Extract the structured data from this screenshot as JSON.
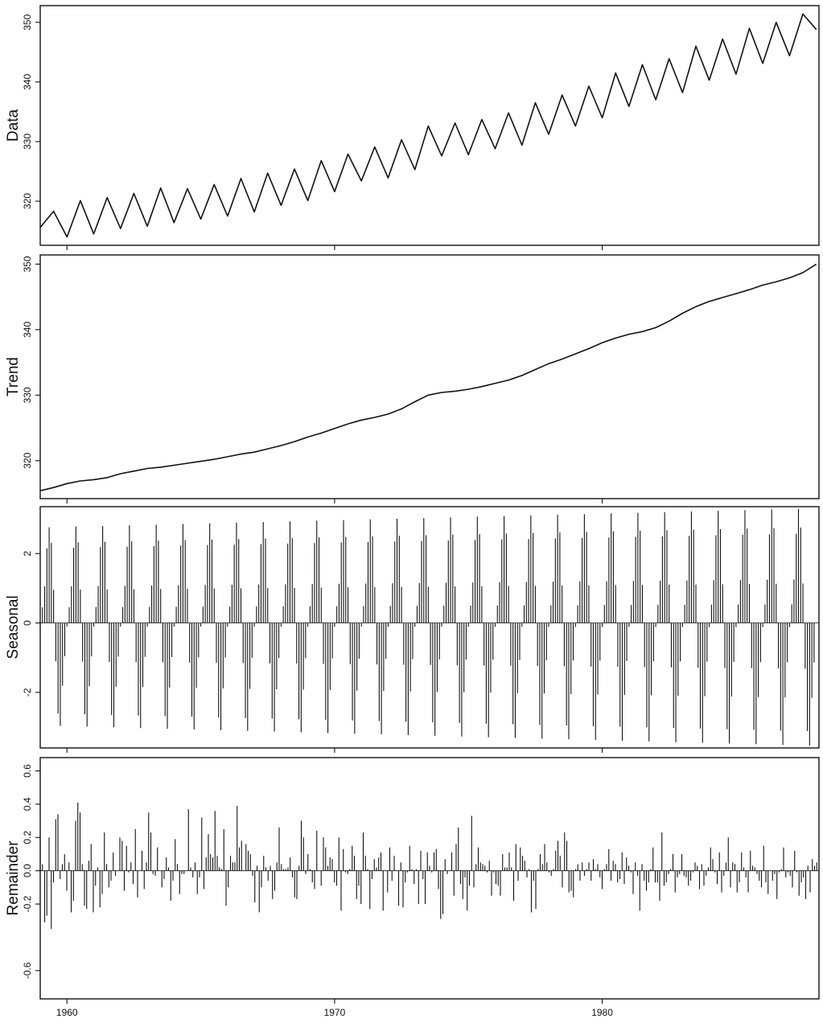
{
  "chart_data": {
    "type": "line",
    "x_range": [
      1959,
      1988.1
    ],
    "x_ticks": [
      {
        "value": 1960,
        "label": "1960"
      },
      {
        "value": 1970,
        "label": "1970"
      },
      {
        "value": 1980,
        "label": "1980"
      }
    ],
    "panels": [
      {
        "id": "data",
        "type": "line",
        "ylabel": "Data",
        "ylim": [
          312.6,
          352.8
        ],
        "yticks": [
          {
            "value": 320,
            "label": "320"
          },
          {
            "value": 330,
            "label": "330"
          },
          {
            "value": 340,
            "label": "340"
          },
          {
            "value": 350,
            "label": "350"
          }
        ],
        "x": [
          1959.0,
          1959.5,
          1960.0,
          1960.5,
          1961.0,
          1961.5,
          1962.0,
          1962.5,
          1963.0,
          1963.5,
          1964.0,
          1964.5,
          1965.0,
          1965.5,
          1966.0,
          1966.5,
          1967.0,
          1967.5,
          1968.0,
          1968.5,
          1969.0,
          1969.5,
          1970.0,
          1970.5,
          1971.0,
          1971.5,
          1972.0,
          1972.5,
          1973.0,
          1973.5,
          1974.0,
          1974.5,
          1975.0,
          1975.5,
          1976.0,
          1976.5,
          1977.0,
          1977.5,
          1978.0,
          1978.5,
          1979.0,
          1979.5,
          1980.0,
          1980.5,
          1981.0,
          1981.5,
          1982.0,
          1982.5,
          1983.0,
          1983.5,
          1984.0,
          1984.5,
          1985.0,
          1985.5,
          1986.0,
          1986.5,
          1987.0,
          1987.5,
          1988.0
        ],
        "y": [
          315.6,
          318.3,
          314.0,
          320.1,
          314.5,
          320.6,
          315.4,
          321.3,
          315.8,
          322.2,
          316.4,
          322.1,
          317.0,
          322.8,
          317.5,
          323.8,
          318.2,
          324.7,
          319.3,
          325.4,
          320.1,
          326.8,
          321.6,
          327.9,
          323.4,
          329.1,
          323.9,
          330.3,
          325.3,
          332.6,
          327.6,
          333.1,
          327.8,
          333.7,
          328.8,
          334.8,
          329.4,
          336.5,
          331.2,
          337.8,
          332.6,
          339.3,
          334.0,
          341.5,
          335.9,
          342.9,
          337.0,
          343.9,
          338.2,
          346.0,
          340.3,
          347.2,
          341.3,
          349.0,
          343.1,
          350.0,
          344.4,
          351.4,
          348.8
        ]
      },
      {
        "id": "trend",
        "type": "line",
        "ylabel": "Trend",
        "ylim": [
          314.2,
          351.4
        ],
        "yticks": [
          {
            "value": 320,
            "label": "320"
          },
          {
            "value": 330,
            "label": "330"
          },
          {
            "value": 340,
            "label": "340"
          },
          {
            "value": 350,
            "label": "350"
          }
        ],
        "x": [
          1959.0,
          1959.5,
          1960.0,
          1960.5,
          1961.0,
          1961.5,
          1962.0,
          1962.5,
          1963.0,
          1963.5,
          1964.0,
          1964.5,
          1965.0,
          1965.5,
          1966.0,
          1966.5,
          1967.0,
          1967.5,
          1968.0,
          1968.5,
          1969.0,
          1969.5,
          1970.0,
          1970.5,
          1971.0,
          1971.5,
          1972.0,
          1972.5,
          1973.0,
          1973.5,
          1974.0,
          1974.5,
          1975.0,
          1975.5,
          1976.0,
          1976.5,
          1977.0,
          1977.5,
          1978.0,
          1978.5,
          1979.0,
          1979.5,
          1980.0,
          1980.5,
          1981.0,
          1981.5,
          1982.0,
          1982.5,
          1983.0,
          1983.5,
          1984.0,
          1984.5,
          1985.0,
          1985.5,
          1986.0,
          1986.5,
          1987.0,
          1987.5,
          1988.0
        ],
        "y": [
          315.4,
          315.9,
          316.5,
          316.9,
          317.1,
          317.4,
          318.0,
          318.4,
          318.8,
          319.0,
          319.3,
          319.6,
          319.9,
          320.2,
          320.6,
          321.0,
          321.3,
          321.8,
          322.3,
          322.9,
          323.6,
          324.2,
          324.9,
          325.6,
          326.2,
          326.6,
          327.1,
          327.9,
          329.0,
          330.0,
          330.4,
          330.6,
          330.9,
          331.3,
          331.8,
          332.3,
          333.0,
          333.9,
          334.8,
          335.5,
          336.3,
          337.1,
          338.0,
          338.7,
          339.3,
          339.7,
          340.3,
          341.3,
          342.5,
          343.5,
          344.3,
          344.9,
          345.5,
          346.1,
          346.8,
          347.3,
          347.9,
          348.7,
          350.0
        ]
      },
      {
        "id": "seasonal",
        "type": "bar",
        "ylabel": "Seasonal",
        "ylim": [
          -3.6,
          3.35
        ],
        "yticks": [
          {
            "value": -2,
            "label": "-2"
          },
          {
            "value": 0,
            "label": "0"
          },
          {
            "value": 2,
            "label": "2"
          }
        ],
        "x_start": 1959.0,
        "months_per_year": 12,
        "n_years": 29,
        "monthly_pattern": [
          -0.1,
          0.45,
          1.05,
          2.15,
          2.75,
          2.3,
          0.95,
          -1.1,
          -2.6,
          -2.95,
          -1.8,
          -0.95
        ],
        "amplitude_growth": [
          1.0,
          1.2
        ]
      },
      {
        "id": "remainder",
        "type": "bar",
        "ylabel": "Remainder",
        "ylim": [
          -0.77,
          0.68
        ],
        "yticks": [
          {
            "value": -0.6,
            "label": "-0.6"
          },
          {
            "value": -0.2,
            "label": "-0.2"
          },
          {
            "value": 0.0,
            "label": "0.0"
          },
          {
            "value": 0.2,
            "label": "0.2"
          },
          {
            "value": 0.4,
            "label": "0.4"
          },
          {
            "value": 0.6,
            "label": "0.6"
          }
        ],
        "x_start": 1959.0,
        "values": [
          0.22,
          0.04,
          -0.31,
          -0.27,
          0.2,
          -0.35,
          -0.07,
          0.31,
          0.34,
          -0.05,
          0.04,
          0.1,
          -0.12,
          0.05,
          -0.25,
          -0.18,
          0.3,
          0.41,
          0.35,
          0.04,
          -0.21,
          -0.23,
          0.06,
          0.16,
          -0.25,
          -0.09,
          0.02,
          -0.22,
          -0.14,
          0.23,
          0.04,
          -0.1,
          -0.06,
          0.11,
          -0.03,
          0.0,
          0.2,
          0.18,
          -0.12,
          0.15,
          -0.01,
          0.05,
          -0.08,
          0.25,
          -0.16,
          0.0,
          0.12,
          -0.11,
          0.05,
          0.35,
          0.23,
          -0.02,
          -0.03,
          0.14,
          0.0,
          -0.1,
          -0.05,
          0.08,
          0.02,
          -0.18,
          -0.06,
          0.19,
          0.04,
          -0.14,
          -0.02,
          -0.02,
          0.0,
          0.37,
          0.02,
          -0.04,
          0.05,
          -0.14,
          -0.04,
          0.32,
          -0.11,
          0.08,
          0.22,
          0.1,
          0.08,
          0.36,
          0.09,
          0.02,
          0.01,
          0.25,
          -0.21,
          -0.1,
          0.09,
          0.05,
          0.05,
          0.39,
          0.14,
          0.18,
          0.0,
          0.16,
          0.12,
          0.1,
          -0.03,
          -0.19,
          0.03,
          -0.25,
          -0.1,
          0.09,
          0.02,
          -0.06,
          0.03,
          -0.17,
          -0.12,
          0.05,
          0.26,
          0.04,
          0.01,
          0.01,
          0.02,
          0.08,
          -0.04,
          -0.16,
          -0.17,
          0.03,
          0.3,
          0.2,
          -0.02,
          0.1,
          0.01,
          -0.07,
          -0.11,
          0.24,
          0.0,
          -0.09,
          0.2,
          0.14,
          0.03,
          0.08,
          0.07,
          -0.07,
          -0.09,
          0.2,
          -0.24,
          0.13,
          -0.01,
          -0.02,
          0.01,
          0.15,
          0.09,
          -0.17,
          -0.09,
          -0.2,
          0.23,
          0.09,
          0.01,
          -0.23,
          -0.05,
          0.07,
          0.02,
          0.08,
          0.11,
          -0.24,
          0.0,
          -0.13,
          0.14,
          -0.06,
          0.09,
          0.0,
          -0.21,
          0.05,
          -0.22,
          -0.07,
          -0.01,
          0.15,
          0.01,
          -0.08,
          0.01,
          -0.2,
          0.12,
          -0.05,
          -0.2,
          0.11,
          0.03,
          -0.01,
          0.11,
          0.13,
          -0.11,
          -0.29,
          -0.26,
          0.07,
          -0.02,
          0.0,
          0.11,
          -0.15,
          0.16,
          0.26,
          -0.08,
          -0.17,
          -0.04,
          -0.24,
          -0.09,
          0.33,
          -0.1,
          0.04,
          0.14,
          0.05,
          0.04,
          0.03,
          -0.01,
          0.06,
          -0.15,
          -0.01,
          -0.08,
          -0.09,
          -0.15,
          0.1,
          0.02,
          0.02,
          0.11,
          0.02,
          -0.18,
          0.16,
          -0.06,
          0.14,
          0.09,
          0.06,
          -0.04,
          0.01,
          -0.25,
          -0.06,
          -0.23,
          0.01,
          0.1,
          0.04,
          0.16,
          0.05,
          -0.01,
          -0.03,
          0.01,
          0.12,
          0.18,
          0.09,
          -0.1,
          0.23,
          0.18,
          -0.13,
          -0.12,
          -0.16,
          0.01,
          0.04,
          -0.06,
          0.05,
          -0.03,
          0.01,
          0.05,
          -0.06,
          0.07,
          0.01,
          0.04,
          -0.04,
          -0.11,
          0.01,
          0.04,
          0.13,
          -0.06,
          0.06,
          0.04,
          -0.07,
          -0.05,
          0.11,
          -0.08,
          0.08,
          0.03,
          -0.01,
          -0.14,
          0.05,
          -0.03,
          -0.24,
          0.04,
          -0.06,
          -0.12,
          -0.07,
          0.01,
          0.14,
          -0.07,
          -0.07,
          -0.18,
          0.23,
          -0.09,
          -0.07,
          -0.02,
          0.01,
          0.1,
          -0.13,
          -0.04,
          -0.02,
          0.1,
          -0.03,
          -0.04,
          -0.09,
          -0.06,
          -0.01,
          0.05,
          0.03,
          -0.11,
          0.04,
          -0.09,
          -0.03,
          0.02,
          0.14,
          0.07,
          -0.01,
          -0.08,
          0.11,
          -0.13,
          -0.03,
          0.05,
          0.2,
          -0.1,
          0.05,
          0.04,
          -0.13,
          -0.07,
          0.11,
          0.02,
          -0.04,
          -0.13,
          0.12,
          0.03,
          0.02,
          -0.02,
          -0.06,
          -0.1,
          0.15,
          -0.07,
          -0.14,
          0.0,
          -0.06,
          -0.02,
          -0.17,
          -0.01,
          0.01,
          0.14,
          -0.04,
          -0.01,
          -0.03,
          -0.1,
          0.12,
          -0.01,
          -0.15,
          -0.07,
          -0.04,
          -0.17,
          0.03,
          -0.13,
          0.07,
          0.03,
          0.05
        ]
      }
    ]
  }
}
